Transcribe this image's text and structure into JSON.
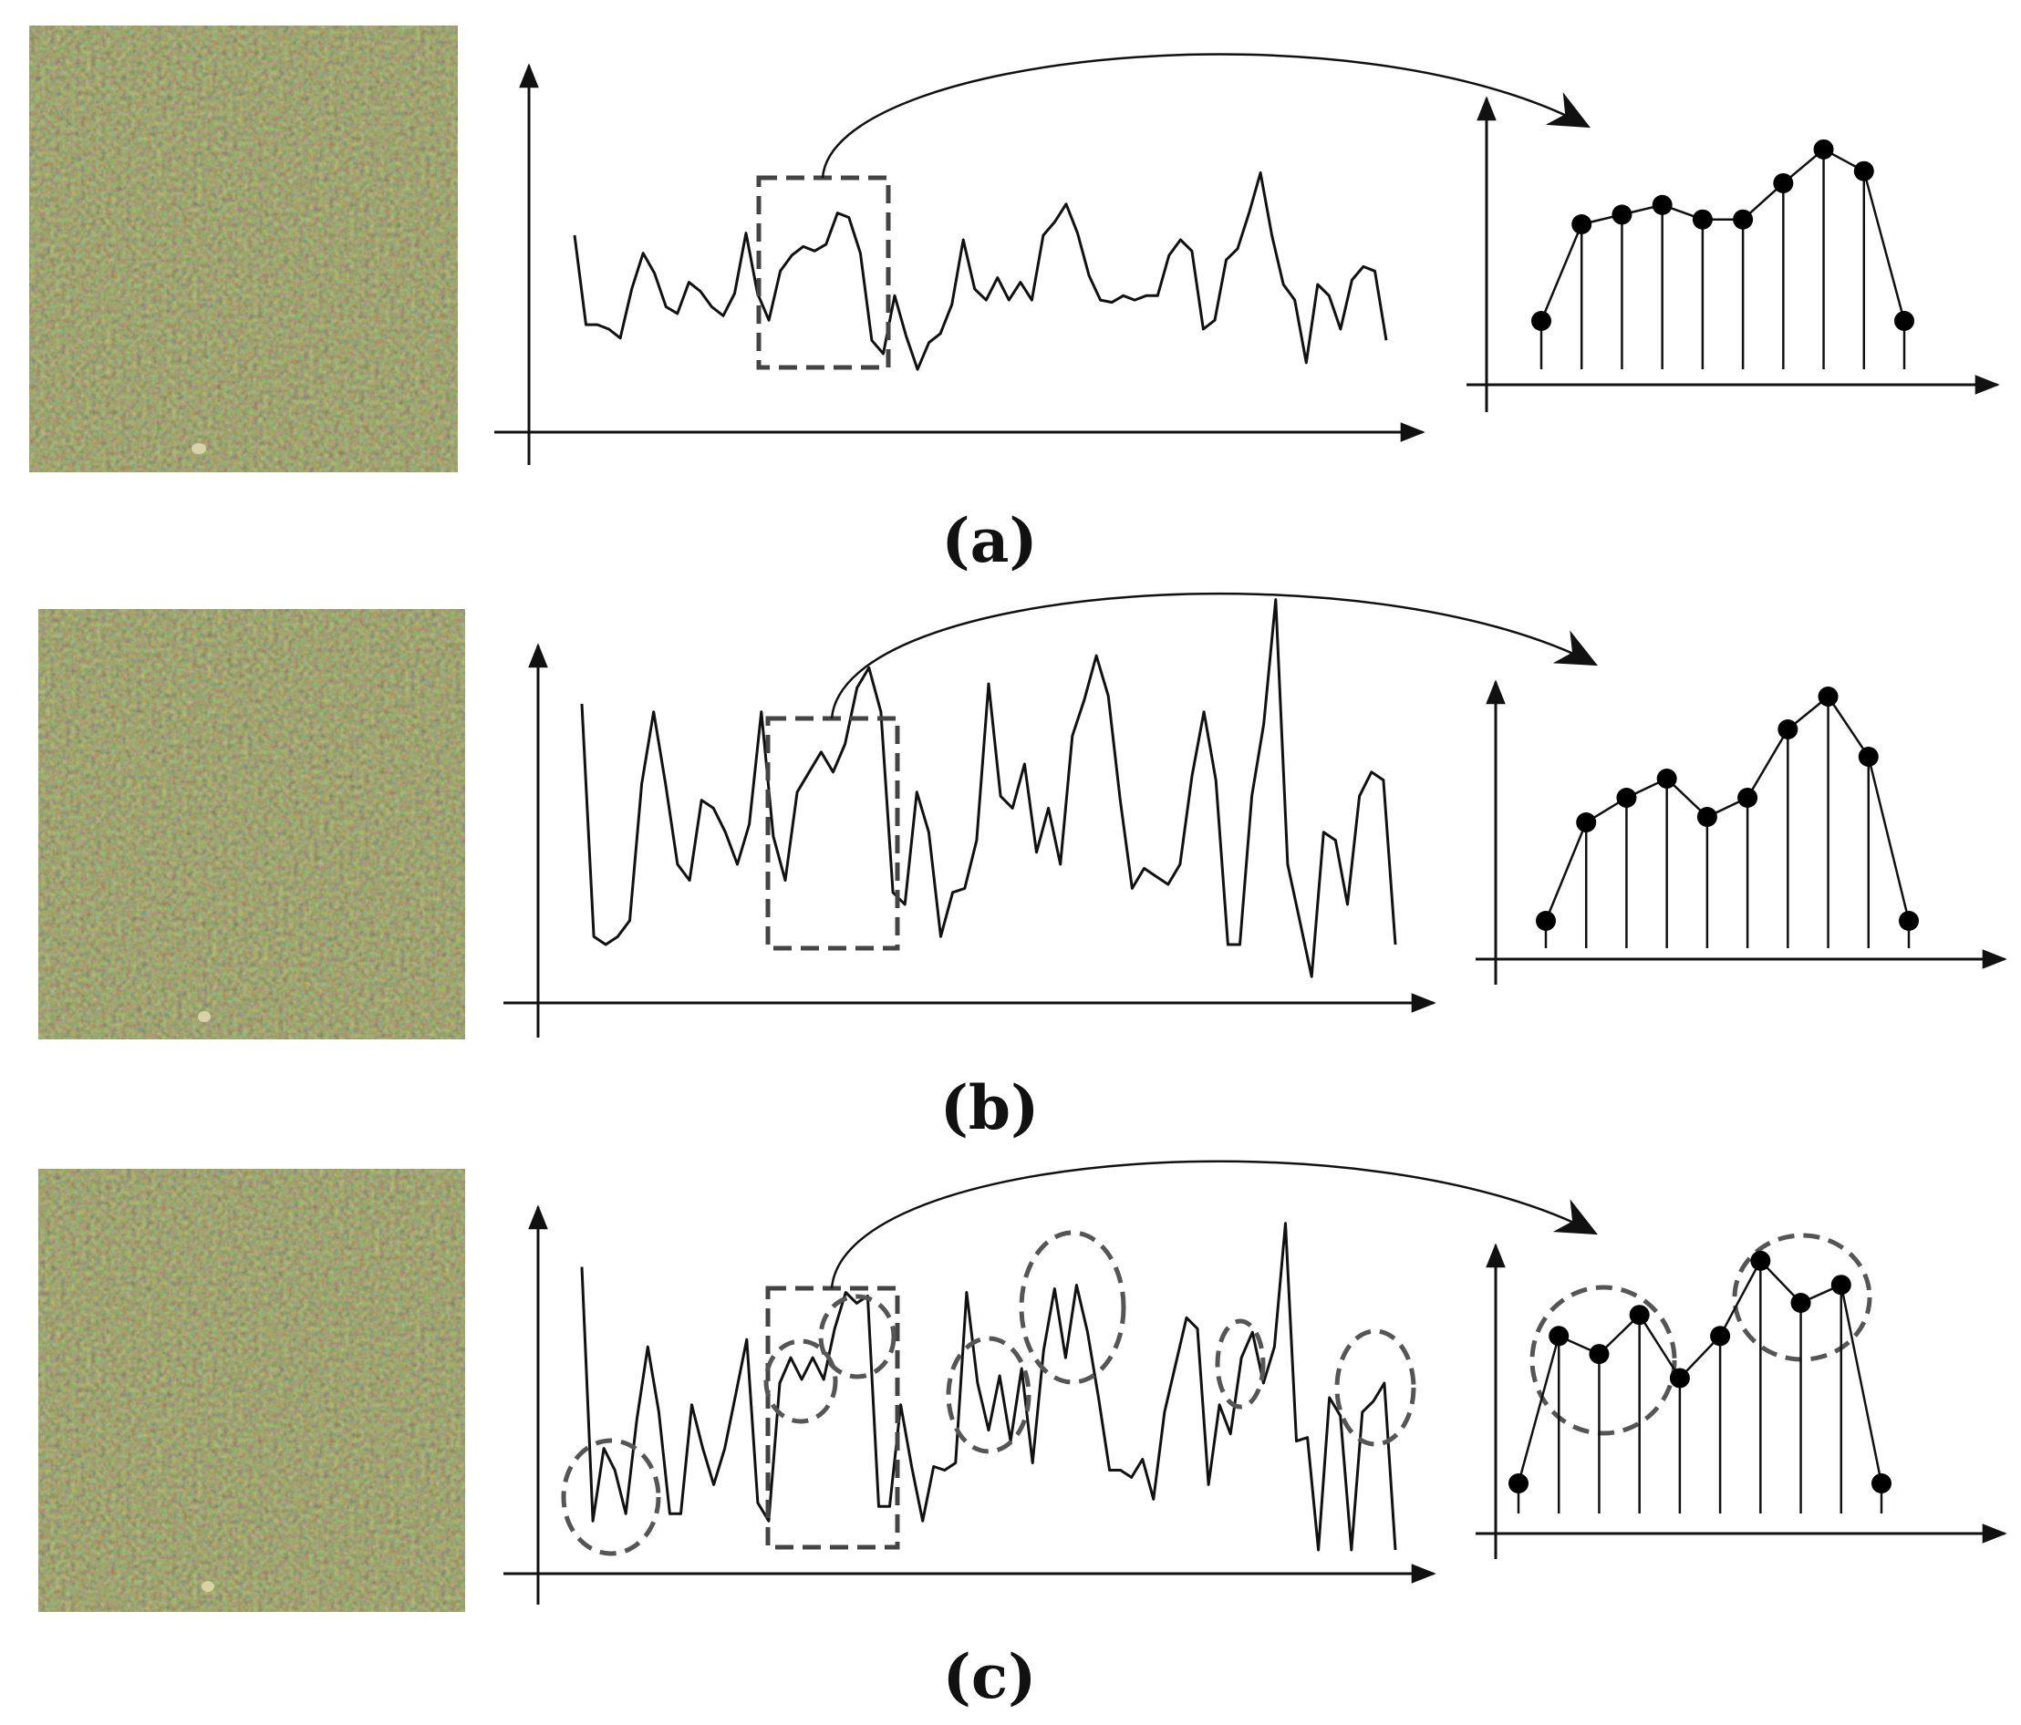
{
  "figure": {
    "panels": [
      {
        "id": "a",
        "caption": "(a)",
        "texture_image": "grass-texture",
        "signal": [
          0.62,
          0.22,
          0.22,
          0.2,
          0.16,
          0.38,
          0.54,
          0.45,
          0.3,
          0.27,
          0.41,
          0.37,
          0.3,
          0.26,
          0.36,
          0.63,
          0.36,
          0.24,
          0.46,
          0.53,
          0.57,
          0.55,
          0.58,
          0.72,
          0.7,
          0.54,
          0.15,
          0.09,
          0.35,
          0.17,
          0.02,
          0.14,
          0.18,
          0.31,
          0.6,
          0.38,
          0.33,
          0.43,
          0.33,
          0.41,
          0.33,
          0.62,
          0.68,
          0.76,
          0.63,
          0.44,
          0.33,
          0.32,
          0.35,
          0.33,
          0.35,
          0.35,
          0.53,
          0.6,
          0.55,
          0.2,
          0.24,
          0.51,
          0.56,
          0.72,
          0.9,
          0.62,
          0.4,
          0.33,
          0.05,
          0.4,
          0.35,
          0.2,
          0.42,
          0.48,
          0.46,
          0.15
        ],
        "samples": [
          0.2,
          0.6,
          0.64,
          0.68,
          0.62,
          0.62,
          0.77,
          0.91,
          0.82,
          0.2
        ]
      },
      {
        "id": "b",
        "caption": "(b)",
        "texture_image": "grass-texture",
        "signal": [
          0.7,
          0.12,
          0.1,
          0.12,
          0.16,
          0.5,
          0.68,
          0.5,
          0.3,
          0.26,
          0.46,
          0.44,
          0.38,
          0.3,
          0.4,
          0.68,
          0.37,
          0.26,
          0.48,
          0.53,
          0.58,
          0.53,
          0.6,
          0.74,
          0.79,
          0.68,
          0.23,
          0.2,
          0.48,
          0.38,
          0.12,
          0.23,
          0.24,
          0.36,
          0.75,
          0.47,
          0.44,
          0.55,
          0.33,
          0.44,
          0.3,
          0.62,
          0.71,
          0.82,
          0.72,
          0.46,
          0.24,
          0.29,
          0.27,
          0.25,
          0.3,
          0.52,
          0.68,
          0.51,
          0.1,
          0.1,
          0.47,
          0.65,
          0.96,
          0.3,
          0.16,
          0.02,
          0.38,
          0.36,
          0.2,
          0.47,
          0.53,
          0.51,
          0.1
        ],
        "samples": [
          0.1,
          0.46,
          0.55,
          0.62,
          0.48,
          0.55,
          0.8,
          0.92,
          0.7,
          0.1
        ]
      },
      {
        "id": "c",
        "caption": "(c)",
        "texture_image": "grass-texture",
        "signal": [
          0.8,
          0.1,
          0.3,
          0.24,
          0.12,
          0.38,
          0.58,
          0.4,
          0.12,
          0.12,
          0.42,
          0.3,
          0.2,
          0.3,
          0.45,
          0.6,
          0.15,
          0.1,
          0.48,
          0.55,
          0.49,
          0.55,
          0.49,
          0.63,
          0.73,
          0.7,
          0.72,
          0.14,
          0.14,
          0.42,
          0.25,
          0.1,
          0.25,
          0.24,
          0.26,
          0.73,
          0.48,
          0.35,
          0.5,
          0.32,
          0.52,
          0.26,
          0.57,
          0.74,
          0.55,
          0.75,
          0.62,
          0.44,
          0.24,
          0.24,
          0.22,
          0.27,
          0.16,
          0.4,
          0.53,
          0.66,
          0.63,
          0.2,
          0.42,
          0.34,
          0.55,
          0.62,
          0.48,
          0.58,
          0.92,
          0.32,
          0.33,
          0.02,
          0.44,
          0.39,
          0.02,
          0.4,
          0.43,
          0.48,
          0.02
        ],
        "samples": [
          0.1,
          0.59,
          0.53,
          0.66,
          0.45,
          0.59,
          0.84,
          0.7,
          0.76,
          0.1
        ],
        "highlight_regions": 9
      }
    ]
  },
  "colors": {
    "ink": "#111111",
    "dash": "#444444",
    "grass_dark": "#4d4a2c",
    "grass_mid": "#6e6538",
    "grass_green": "#5a6a30",
    "grass_brown": "#7a6a3e"
  },
  "icons": {
    "axis_arrow": "arrowhead",
    "zoom_arrow": "curved-arrow"
  }
}
